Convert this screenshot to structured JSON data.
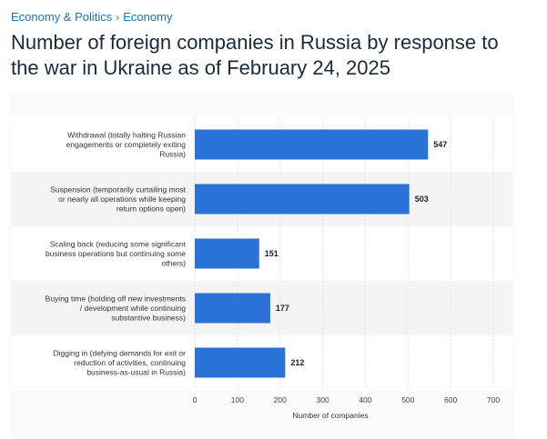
{
  "breadcrumb": {
    "items": [
      "Economy & Politics",
      "Economy"
    ],
    "separator": "›"
  },
  "title": "Number of foreign companies in Russia by response to the war in Ukraine as of February 24, 2025",
  "chart_data": {
    "type": "bar",
    "orientation": "horizontal",
    "categories": [
      [
        "Withdrawal (totally halting Russian",
        "engagements or completely exiting",
        "Russia)"
      ],
      [
        "Suspension (temporarily curtailing most",
        "or nearly all operations while keeping",
        "return options open)"
      ],
      [
        "Scaling back (reducing some significant",
        "business operations but continuing some",
        "others)"
      ],
      [
        "Buying time (holding off new investments",
        "/ development while continuing",
        "substantive business)"
      ],
      [
        "Digging in (defying demands for exit or",
        "reduction of activities, continuing",
        "business-as-usual in Russia)"
      ]
    ],
    "values": [
      547,
      503,
      151,
      177,
      212
    ],
    "xlabel": "Number of companies",
    "xlim": [
      0,
      700
    ],
    "xticks": [
      0,
      100,
      200,
      300,
      400,
      500,
      600,
      700
    ],
    "grid": true,
    "bar_color": "#2a72d5"
  }
}
